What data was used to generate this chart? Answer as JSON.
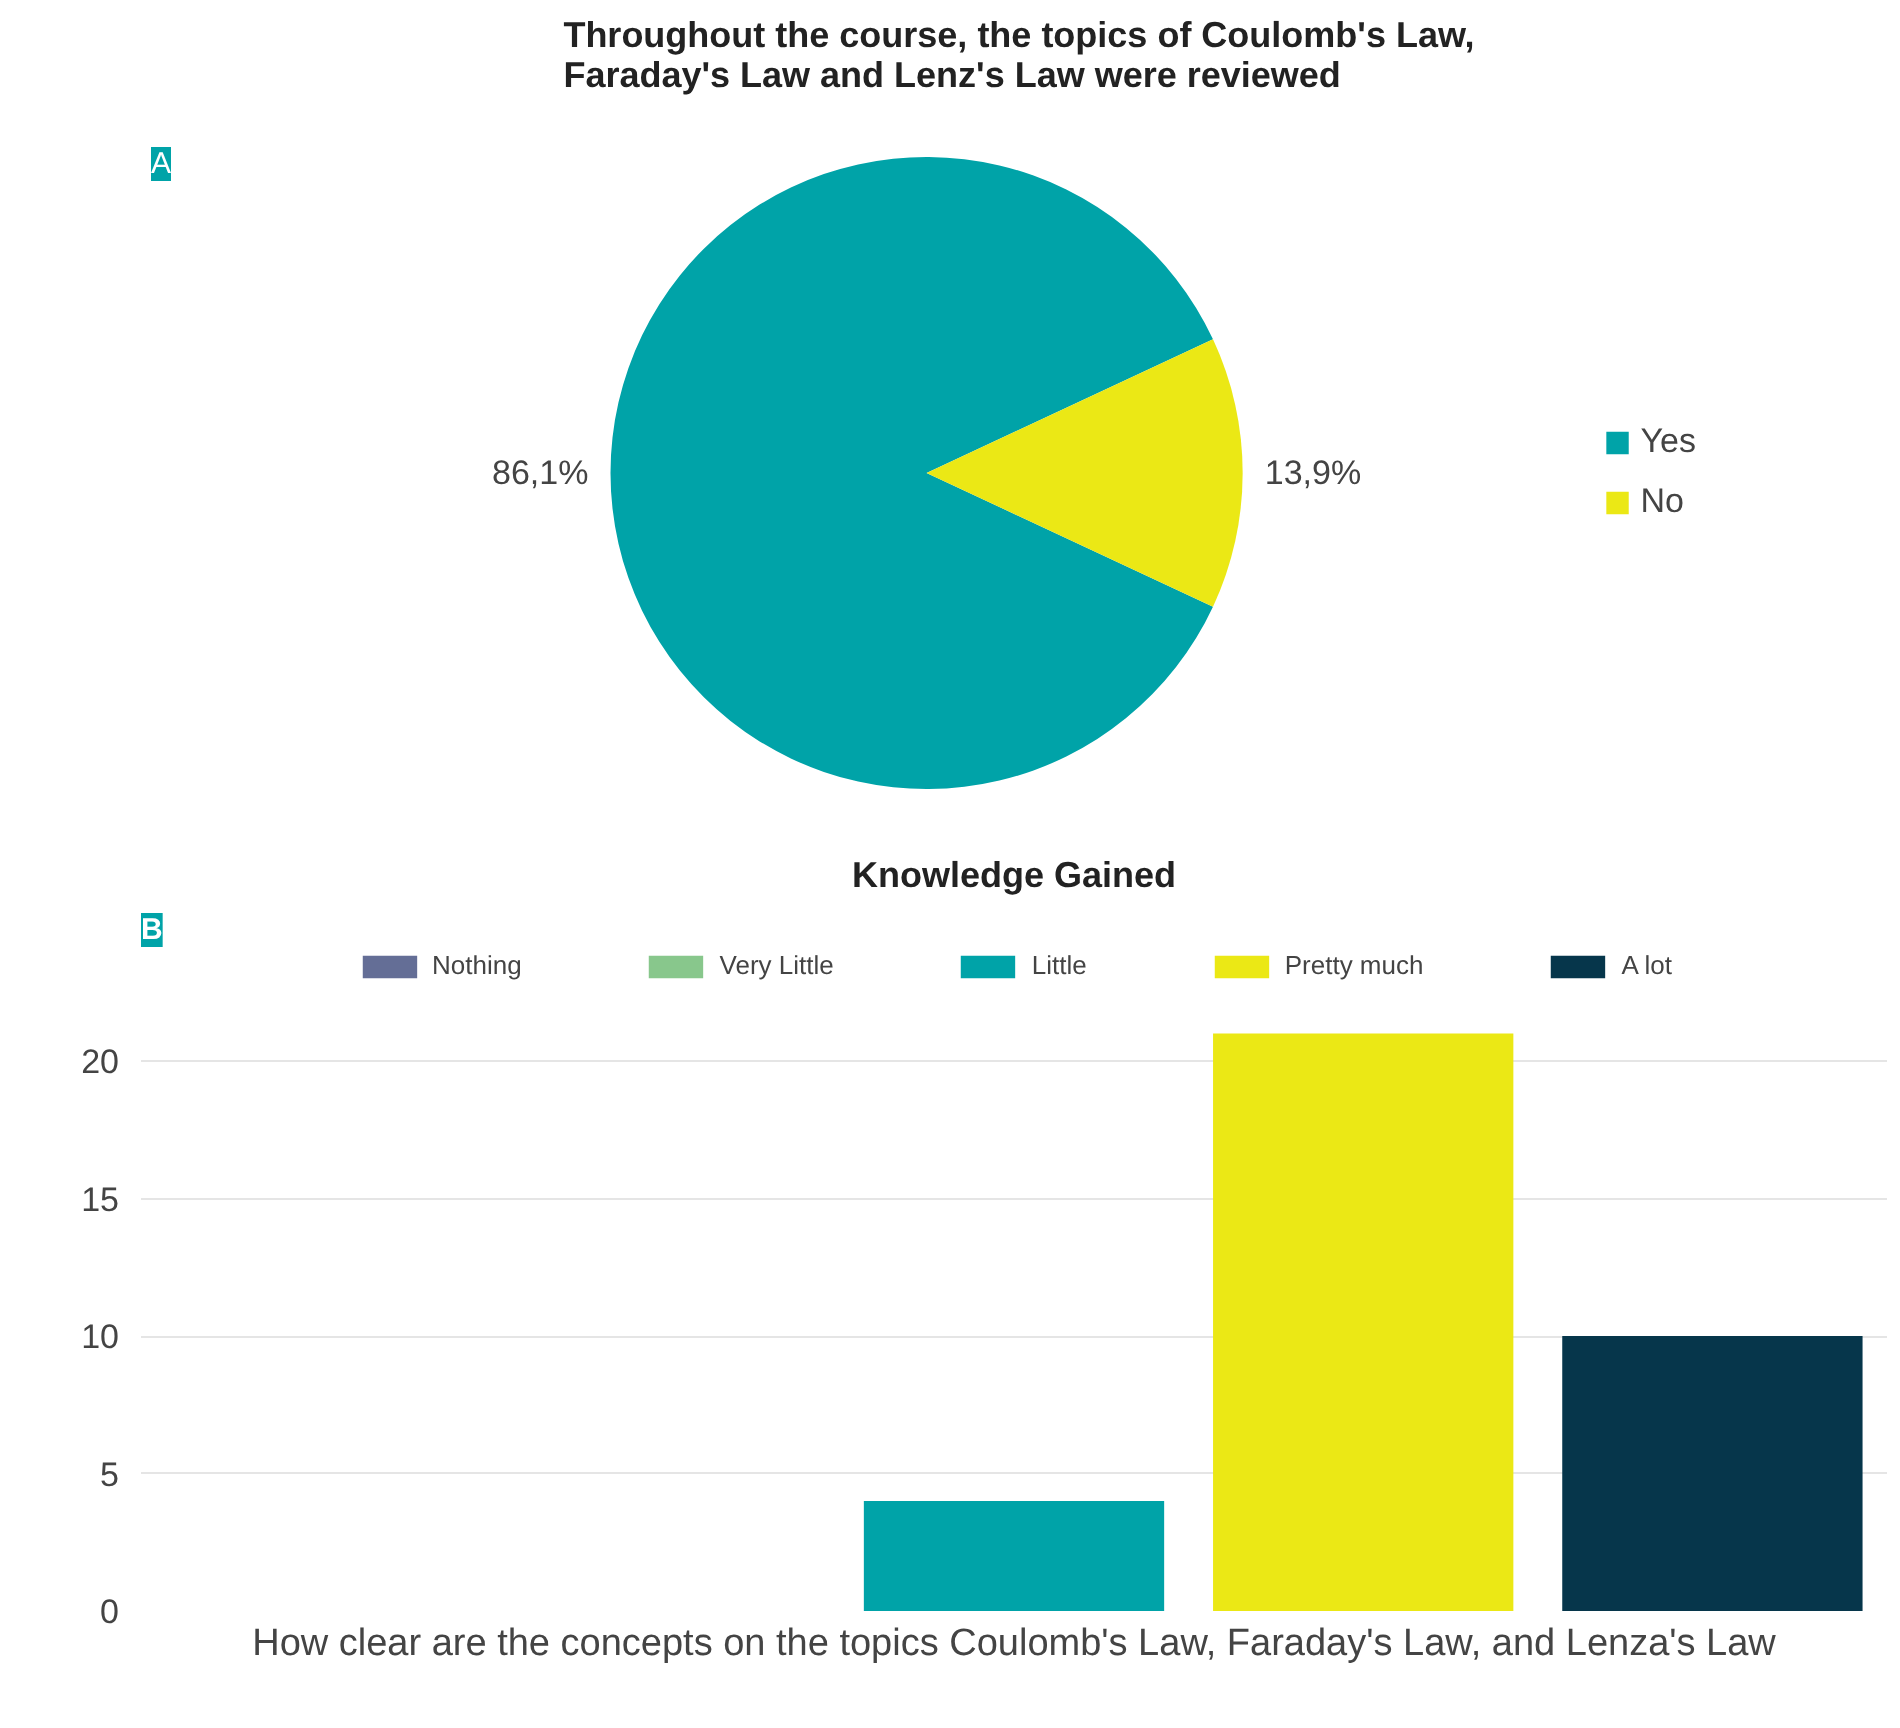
{
  "chart_data": [
    {
      "type": "pie",
      "title": "Throughout the course, the topics of Coulomb's Law,\nFaraday's Law and Lenz's Law were reviewed",
      "categories": [
        "Yes",
        "No"
      ],
      "values": [
        86.1,
        13.9
      ],
      "colors": [
        "#00a3a8",
        "#ebe815"
      ],
      "value_labels": [
        "86,1%",
        "13,9%"
      ],
      "legend": "right",
      "annotations": [
        "A"
      ]
    },
    {
      "type": "bar",
      "title": "Knowledge Gained",
      "xlabel": "How clear are the concepts on the topics Coulomb's Law, Faraday's Law, and Lenza's Law",
      "categories": [
        null
      ],
      "series": [
        {
          "name": "Nothing",
          "color": "#646e96",
          "values": [
            0
          ]
        },
        {
          "name": "Very Little",
          "color": "#88c78c",
          "values": [
            0
          ]
        },
        {
          "name": "Little",
          "color": "#00a3a8",
          "values": [
            4
          ]
        },
        {
          "name": "Pretty much",
          "color": "#ebe815",
          "values": [
            21
          ]
        },
        {
          "name": "A lot",
          "color": "#06364b",
          "values": [
            10
          ]
        }
      ],
      "ylim": [
        0,
        24
      ],
      "yticks": [
        0,
        5,
        10,
        15,
        20
      ],
      "grid": "y",
      "legend": "top",
      "tick_labels": "y",
      "annotations": [
        "B"
      ]
    }
  ]
}
